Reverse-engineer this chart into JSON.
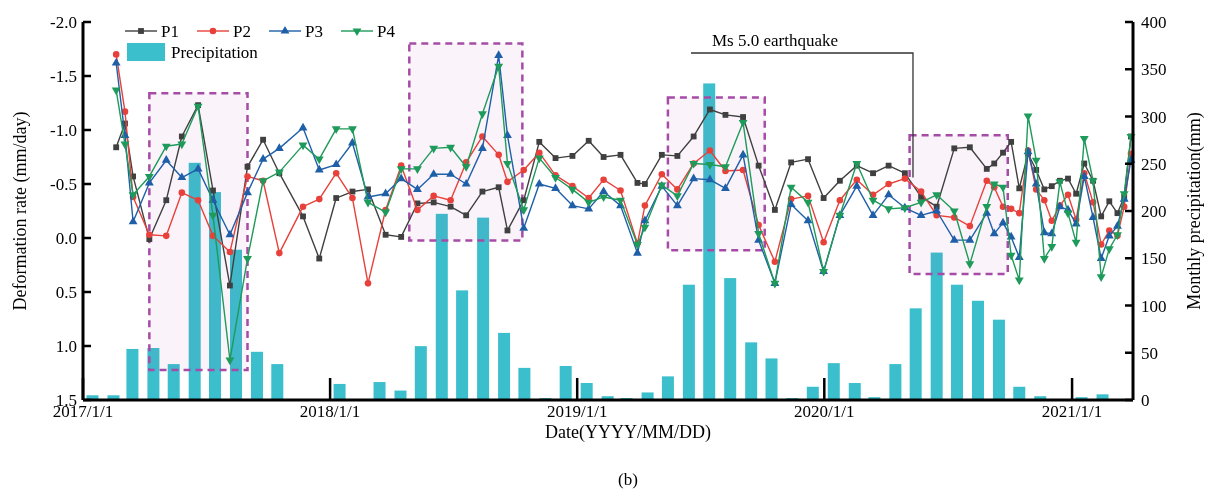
{
  "chart_data": {
    "type": "line",
    "xlabel": "Date(YYYY/MM/DD)",
    "ylabel": "Deformation rate (mm/day)",
    "y2label": "Monthly precipitation(mm)",
    "xlim": [
      "2017-01-01",
      "2021-04-01"
    ],
    "xticks": [
      {
        "value": "2017-01-01",
        "label": "2017/1/1"
      },
      {
        "value": "2018-01-01",
        "label": "2018/1/1"
      },
      {
        "value": "2019-01-01",
        "label": "2019/1/1"
      },
      {
        "value": "2020-01-01",
        "label": "2020/1/1"
      },
      {
        "value": "2021-01-01",
        "label": "2021/1/1"
      }
    ],
    "ylim": [
      1.5,
      -2.0
    ],
    "yticks": [
      {
        "value": -2,
        "label": "-2.0"
      },
      {
        "value": -1.5,
        "label": "-1.5"
      },
      {
        "value": -1,
        "label": "-1.0"
      },
      {
        "value": -0.5,
        "label": "-0.5"
      },
      {
        "value": 0,
        "label": "0.0"
      },
      {
        "value": 0.5,
        "label": "0.5"
      },
      {
        "value": 1,
        "label": "1.0"
      },
      {
        "value": 1.5,
        "label": "1.5"
      }
    ],
    "y2lim": [
      0,
      400
    ],
    "y2ticks": [
      0,
      50,
      100,
      150,
      200,
      250,
      300,
      350,
      400
    ],
    "grid": false,
    "legend": "top left",
    "line_style": "solid",
    "x": [
      "2017-02-19",
      "2017-03-04",
      "2017-03-16",
      "2017-04-09",
      "2017-05-04",
      "2017-05-27",
      "2017-06-20",
      "2017-07-12",
      "2017-08-06",
      "2017-09-01",
      "2017-09-24",
      "2017-10-18",
      "2017-11-22",
      "2017-12-16",
      "2018-01-10",
      "2018-02-03",
      "2018-02-26",
      "2018-03-24",
      "2018-04-16",
      "2018-05-10",
      "2018-06-03",
      "2018-06-28",
      "2018-07-21",
      "2018-08-14",
      "2018-09-07",
      "2018-09-20",
      "2018-10-14",
      "2018-11-06",
      "2018-11-30",
      "2018-12-25",
      "2019-01-18",
      "2019-02-09",
      "2019-03-06",
      "2019-03-31",
      "2019-04-11",
      "2019-05-06",
      "2019-05-29",
      "2019-06-22",
      "2019-07-16",
      "2019-08-08",
      "2019-09-03",
      "2019-09-26",
      "2019-10-20",
      "2019-11-13",
      "2019-12-08",
      "2019-12-31",
      "2020-01-24",
      "2020-02-18",
      "2020-03-13",
      "2020-04-05",
      "2020-04-29",
      "2020-05-23",
      "2020-06-15",
      "2020-07-11",
      "2020-08-03",
      "2020-08-28",
      "2020-09-08",
      "2020-09-21",
      "2020-10-03",
      "2020-10-15",
      "2020-10-28",
      "2020-11-09",
      "2020-11-21",
      "2020-12-02",
      "2020-12-14",
      "2020-12-26",
      "2021-01-07",
      "2021-01-19",
      "2021-02-01",
      "2021-02-13",
      "2021-02-25",
      "2021-03-09",
      "2021-03-19",
      "2021-03-29"
    ],
    "series": [
      {
        "name": "Precipitation",
        "type": "bar",
        "axis": "y2",
        "color": "#3bbfcc",
        "x": [
          "2017-01-15",
          "2017-02-15",
          "2017-03-15",
          "2017-04-15",
          "2017-05-15",
          "2017-06-15",
          "2017-07-15",
          "2017-08-15",
          "2017-09-15",
          "2017-10-15",
          "2017-11-15",
          "2017-12-15",
          "2018-01-15",
          "2018-02-15",
          "2018-03-15",
          "2018-04-15",
          "2018-05-15",
          "2018-06-15",
          "2018-07-15",
          "2018-08-15",
          "2018-09-15",
          "2018-10-15",
          "2018-11-15",
          "2018-12-15",
          "2019-01-15",
          "2019-02-15",
          "2019-03-15",
          "2019-04-15",
          "2019-05-15",
          "2019-06-15",
          "2019-07-15",
          "2019-08-15",
          "2019-09-15",
          "2019-10-15",
          "2019-11-15",
          "2019-12-15",
          "2020-01-15",
          "2020-02-15",
          "2020-03-15",
          "2020-04-15",
          "2020-05-15",
          "2020-06-15",
          "2020-07-15",
          "2020-08-15",
          "2020-09-15",
          "2020-10-15",
          "2020-11-15",
          "2020-12-15",
          "2021-01-15",
          "2021-02-15"
        ],
        "values": [
          5,
          5,
          54,
          55,
          38,
          251,
          220,
          159,
          51,
          38,
          1,
          1,
          17,
          1,
          19,
          10,
          57,
          197,
          116,
          193,
          71,
          34,
          2,
          36,
          18,
          4,
          2,
          8,
          25,
          122,
          335,
          129,
          61,
          44,
          2,
          14,
          39,
          18,
          3,
          38,
          97,
          156,
          122,
          105,
          85,
          14,
          4,
          1,
          3,
          6
        ]
      },
      {
        "name": "P1",
        "color": "#404040",
        "marker": "square",
        "values": [
          -0.84,
          -1.06,
          -0.57,
          0.01,
          -0.35,
          -0.94,
          -1.23,
          -0.44,
          0.44,
          -0.66,
          -0.91,
          -0.6,
          -0.2,
          0.19,
          -0.37,
          -0.43,
          -0.45,
          -0.03,
          -0.01,
          -0.32,
          -0.33,
          -0.29,
          -0.21,
          -0.43,
          -0.47,
          -0.07,
          -0.35,
          -0.89,
          -0.74,
          -0.76,
          -0.9,
          -0.75,
          -0.77,
          -0.51,
          -0.5,
          -0.77,
          -0.76,
          -0.94,
          -1.19,
          -1.14,
          -1.12,
          -0.67,
          -0.26,
          -0.7,
          -0.73,
          -0.37,
          -0.53,
          -0.67,
          -0.6,
          -0.67,
          -0.6,
          -0.38,
          -0.29,
          -0.83,
          -0.84,
          -0.64,
          -0.69,
          -0.79,
          -0.89,
          -0.46,
          -0.78,
          -0.63,
          -0.45,
          -0.48,
          -0.53,
          -0.55,
          -0.41,
          -0.69,
          -0.53,
          -0.2,
          -0.34,
          -0.23,
          -0.38,
          -0.94
        ]
      },
      {
        "name": "P2",
        "color": "#e8403a",
        "marker": "circle",
        "values": [
          -1.7,
          -1.17,
          -0.38,
          -0.03,
          -0.02,
          -0.42,
          -0.35,
          -0.02,
          0.13,
          -0.57,
          -0.53,
          0.14,
          -0.29,
          -0.36,
          -0.6,
          -0.37,
          0.42,
          -0.26,
          -0.67,
          -0.26,
          -0.39,
          -0.35,
          -0.7,
          -0.94,
          -0.77,
          -0.52,
          -0.63,
          -0.79,
          -0.58,
          -0.48,
          -0.37,
          -0.54,
          -0.44,
          0.05,
          -0.3,
          -0.59,
          -0.45,
          -0.69,
          -0.81,
          -0.62,
          -0.63,
          -0.12,
          0.22,
          -0.36,
          -0.39,
          0.04,
          -0.35,
          -0.54,
          -0.4,
          -0.5,
          -0.55,
          -0.43,
          -0.21,
          -0.19,
          -0.11,
          -0.53,
          -0.47,
          -0.29,
          -0.27,
          -0.23,
          -0.81,
          -0.45,
          -0.35,
          -0.16,
          -0.3,
          -0.4,
          -0.17,
          -0.6,
          -0.33,
          0.06,
          -0.07,
          -0.02,
          -0.29,
          -0.78
        ]
      },
      {
        "name": "P3",
        "color": "#1f5fa8",
        "marker": "triangle",
        "values": [
          -1.62,
          -0.95,
          -0.15,
          -0.51,
          -0.72,
          -0.56,
          -0.64,
          -0.35,
          -0.03,
          -0.42,
          -0.73,
          -0.83,
          -1.02,
          -0.63,
          -0.68,
          -0.88,
          -0.38,
          -0.41,
          -0.55,
          -0.45,
          -0.59,
          -0.59,
          -0.5,
          -0.83,
          -1.69,
          -0.95,
          -0.09,
          -0.5,
          -0.46,
          -0.3,
          -0.27,
          -0.43,
          -0.3,
          0.14,
          -0.16,
          -0.48,
          -0.3,
          -0.55,
          -0.54,
          -0.46,
          -0.77,
          0.02,
          0.42,
          -0.31,
          -0.16,
          0.31,
          -0.21,
          -0.48,
          -0.21,
          -0.4,
          -0.28,
          -0.21,
          -0.25,
          0.02,
          0.02,
          -0.23,
          -0.04,
          -0.14,
          -0.01,
          0.18,
          -0.8,
          -0.5,
          -0.05,
          -0.04,
          -0.29,
          -0.26,
          -0.13,
          -0.57,
          -0.19,
          0.19,
          -0.02,
          -0.11,
          -0.36,
          -0.72
        ]
      },
      {
        "name": "P4",
        "color": "#1e9a5a",
        "marker": "triangle-down",
        "values": [
          -1.37,
          -0.87,
          -0.4,
          -0.57,
          -0.85,
          -0.87,
          -1.22,
          -0.21,
          1.13,
          0.19,
          -0.53,
          -0.61,
          -0.86,
          -0.73,
          -1.01,
          -1.01,
          -0.33,
          -0.24,
          -0.64,
          -0.64,
          -0.83,
          -0.84,
          -0.66,
          -1.15,
          -1.59,
          -0.69,
          -0.26,
          -0.74,
          -0.56,
          -0.45,
          -0.33,
          -0.38,
          -0.35,
          0.06,
          -0.1,
          -0.49,
          -0.39,
          -0.69,
          -0.68,
          -0.66,
          -1.07,
          -0.04,
          0.42,
          -0.47,
          -0.33,
          0.31,
          -0.21,
          -0.69,
          -0.35,
          -0.27,
          -0.28,
          -0.33,
          -0.4,
          -0.25,
          0.24,
          -0.29,
          -0.5,
          -0.47,
          0.16,
          0.39,
          -1.13,
          -0.72,
          0.19,
          0.08,
          -0.52,
          -0.23,
          0.04,
          -0.92,
          -0.53,
          0.36,
          0.1,
          -0.03,
          -0.41,
          -0.94
        ]
      }
    ],
    "bands": [
      {
        "axis": "x",
        "from": "2017-04-09",
        "to": "2017-09-01",
        "color": "#a64ca6"
      },
      {
        "axis": "x",
        "from": "2018-04-28",
        "to": "2018-10-12",
        "color": "#a64ca6"
      },
      {
        "axis": "x",
        "from": "2019-05-15",
        "to": "2019-10-05",
        "color": "#a64ca6"
      },
      {
        "axis": "x",
        "from": "2020-05-06",
        "to": "2020-09-28",
        "color": "#a64ca6"
      }
    ],
    "annotations": [
      {
        "text": "Ms 5.0 earthquake",
        "x": "2020-05-11",
        "y": -0.56
      },
      "(b)"
    ]
  }
}
